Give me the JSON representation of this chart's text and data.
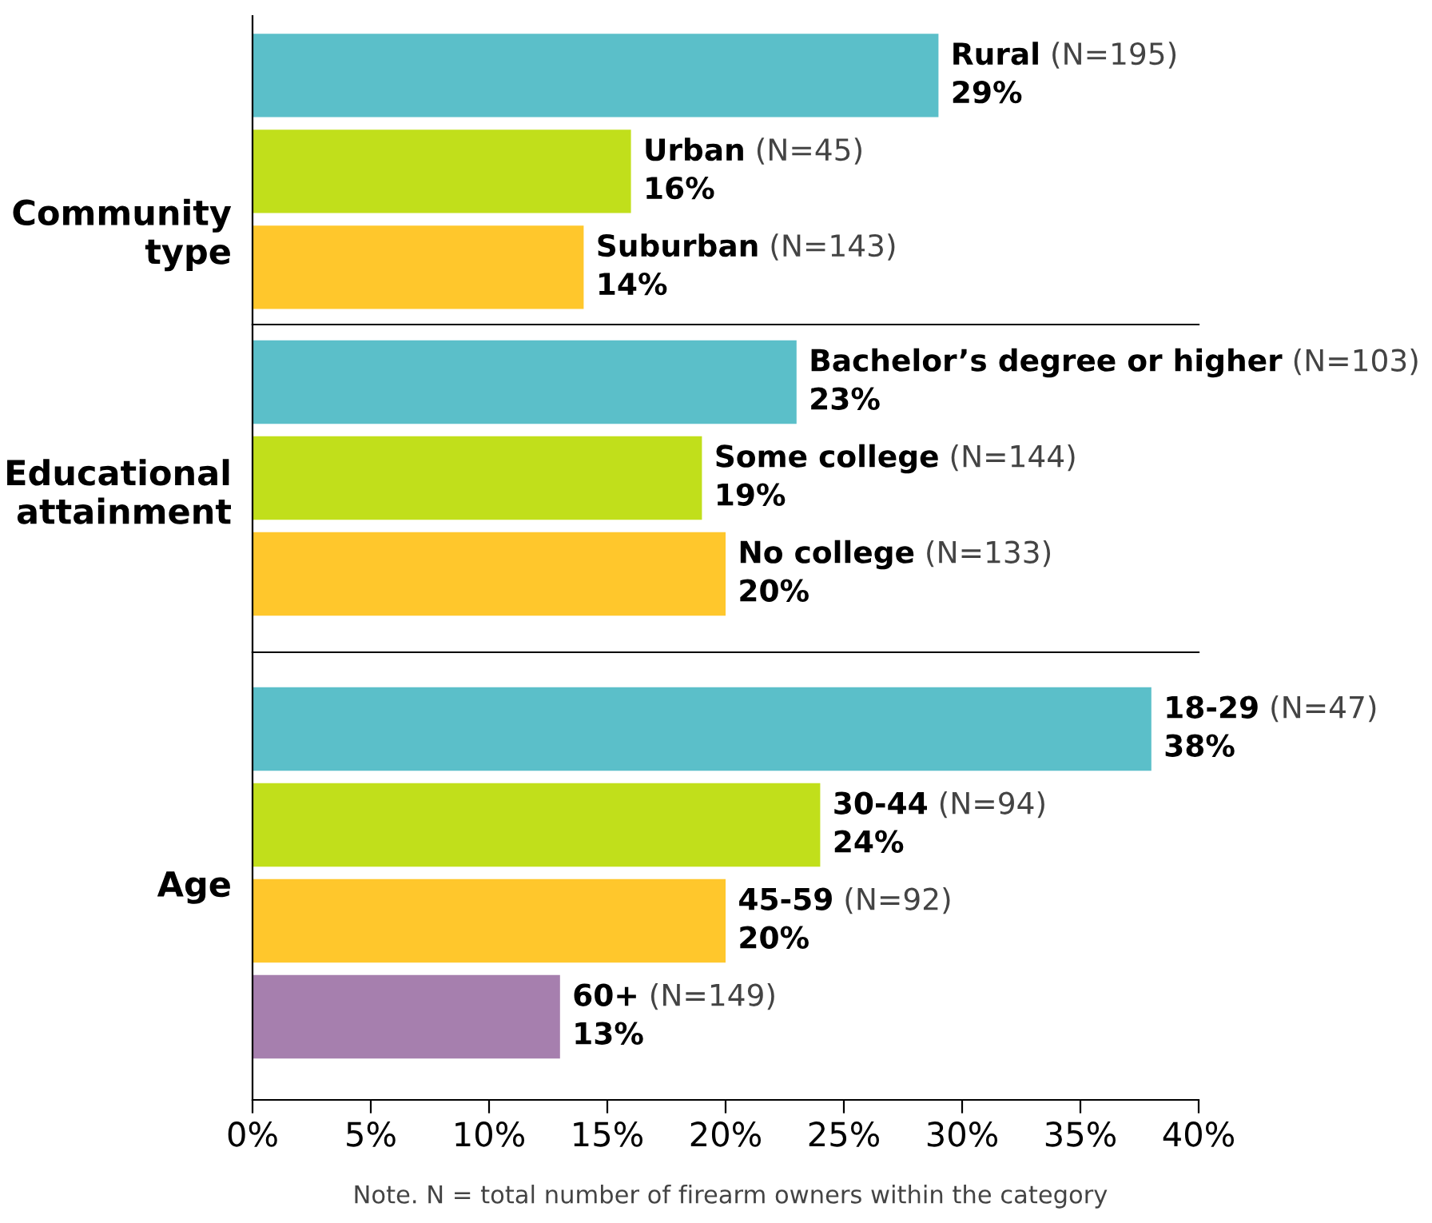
{
  "chart_data": [
    {
      "type": "bar",
      "orientation": "horizontal",
      "ylabel": "Community\ntype",
      "categories": [
        "Rural (N=195)",
        "Urban (N=45)",
        "Suburban (N=143)"
      ],
      "values": [
        29,
        16,
        14
      ],
      "value_labels": [
        "29%",
        "16%",
        "14%"
      ],
      "colors": [
        "#5bbfc9",
        "#c1df1b",
        "#ffc72c"
      ],
      "xlim": [
        0,
        40
      ],
      "tick_labels": false,
      "grid": false
    },
    {
      "type": "bar",
      "orientation": "horizontal",
      "ylabel": "Educational\nattainment",
      "categories": [
        "Bachelor’s degree or higher (N=103)",
        "Some college (N=144)",
        "No college (N=133)"
      ],
      "values": [
        23,
        19,
        20
      ],
      "value_labels": [
        "23%",
        "19%",
        "20%"
      ],
      "colors": [
        "#5bbfc9",
        "#c1df1b",
        "#ffc72c"
      ],
      "xlim": [
        0,
        40
      ],
      "tick_labels": false,
      "grid": false
    },
    {
      "type": "bar",
      "orientation": "horizontal",
      "ylabel": "Age",
      "categories": [
        "18-29 (N=47)",
        "30-44 (N=94)",
        "45-59 (N=92)",
        "60+ (N=149)"
      ],
      "values": [
        38,
        24,
        20,
        13
      ],
      "value_labels": [
        "38%",
        "24%",
        "20%",
        "13%"
      ],
      "colors": [
        "#5bbfc9",
        "#c1df1b",
        "#ffc72c",
        "#a67fae"
      ],
      "xlim": [
        0,
        40
      ],
      "xticks": [
        {
          "value": 0,
          "label": "0%"
        },
        {
          "value": 5,
          "label": "5%"
        },
        {
          "value": 10,
          "label": "10%"
        },
        {
          "value": 15,
          "label": "15%"
        },
        {
          "value": 20,
          "label": "20%"
        },
        {
          "value": 25,
          "label": "25%"
        },
        {
          "value": 30,
          "label": "30%"
        },
        {
          "value": 35,
          "label": "35%"
        },
        {
          "value": 40,
          "label": "40%"
        }
      ],
      "tick_labels": "x",
      "grid": false,
      "annotations": [
        "Note. N = total number of firearm owners within the category"
      ]
    }
  ]
}
